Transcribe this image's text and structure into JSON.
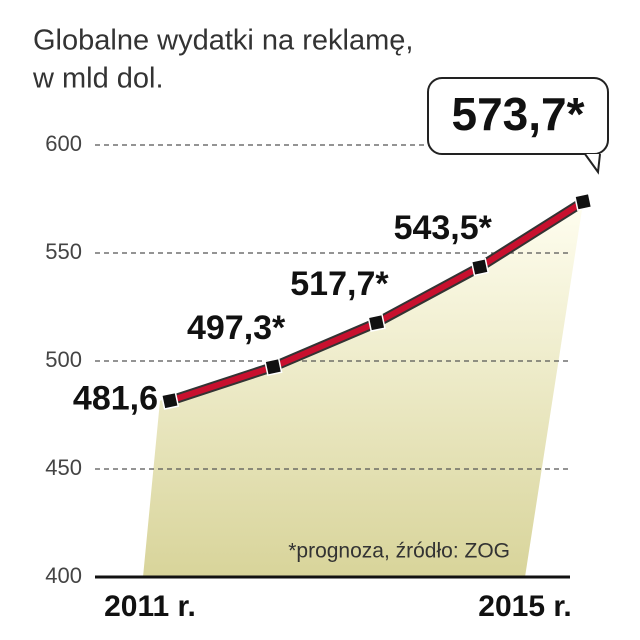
{
  "chart_data": {
    "type": "line",
    "title": [
      "Globalne wydatki na reklamę,",
      "w mld dol."
    ],
    "categories": [
      "2011 r.",
      null,
      null,
      null,
      "2015 r."
    ],
    "series": [
      {
        "color": "#c8102e",
        "values": [
          481.6,
          497.3,
          517.7,
          543.5,
          573.7
        ],
        "value_labels": [
          "481,6",
          "497,3*",
          "517,7*",
          "543,5*",
          "573,7*"
        ]
      }
    ],
    "ylim": [
      400,
      600
    ],
    "yticks": [
      400,
      450,
      500,
      550,
      600
    ],
    "grid": true,
    "note": "*prognoza, źródło: ZOG"
  }
}
